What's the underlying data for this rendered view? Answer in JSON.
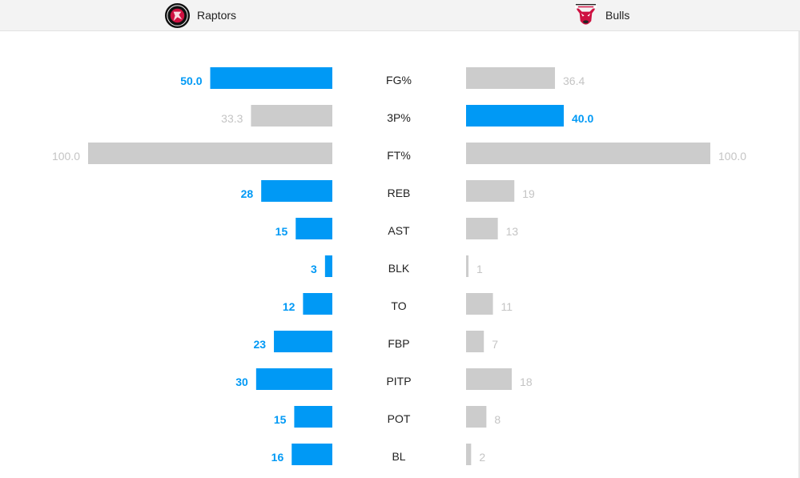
{
  "teams": {
    "home": {
      "name": "Raptors",
      "logo_icon": "raptors-logo-icon"
    },
    "away": {
      "name": "Bulls",
      "logo_icon": "bulls-logo-icon"
    }
  },
  "colors": {
    "leader": "#0099f5",
    "trailer": "#cccccc"
  },
  "chart_data": {
    "type": "bar",
    "orientation": "horizontal-diverging",
    "categories": [
      "FG%",
      "3P%",
      "FT%",
      "REB",
      "AST",
      "BLK",
      "TO",
      "FBP",
      "PITP",
      "POT",
      "BL"
    ],
    "series": [
      {
        "name": "Raptors",
        "values": [
          50.0,
          33.3,
          100.0,
          28,
          15,
          3,
          12,
          23,
          30,
          15,
          16
        ],
        "labels": [
          "50.0",
          "33.3",
          "100.0",
          "28",
          "15",
          "3",
          "12",
          "23",
          "30",
          "15",
          "16"
        ]
      },
      {
        "name": "Bulls",
        "values": [
          36.4,
          40.0,
          100.0,
          19,
          13,
          1,
          11,
          7,
          18,
          8,
          2
        ],
        "labels": [
          "36.4",
          "40.0",
          "100.0",
          "19",
          "13",
          "1",
          "11",
          "7",
          "18",
          "8",
          "2"
        ]
      }
    ],
    "highlight": [
      "home",
      "away",
      "none",
      "home",
      "home",
      "home",
      "home",
      "home",
      "home",
      "home",
      "home"
    ],
    "title": "",
    "xlabel": "",
    "ylabel": "",
    "grid": false,
    "legend": "top"
  }
}
